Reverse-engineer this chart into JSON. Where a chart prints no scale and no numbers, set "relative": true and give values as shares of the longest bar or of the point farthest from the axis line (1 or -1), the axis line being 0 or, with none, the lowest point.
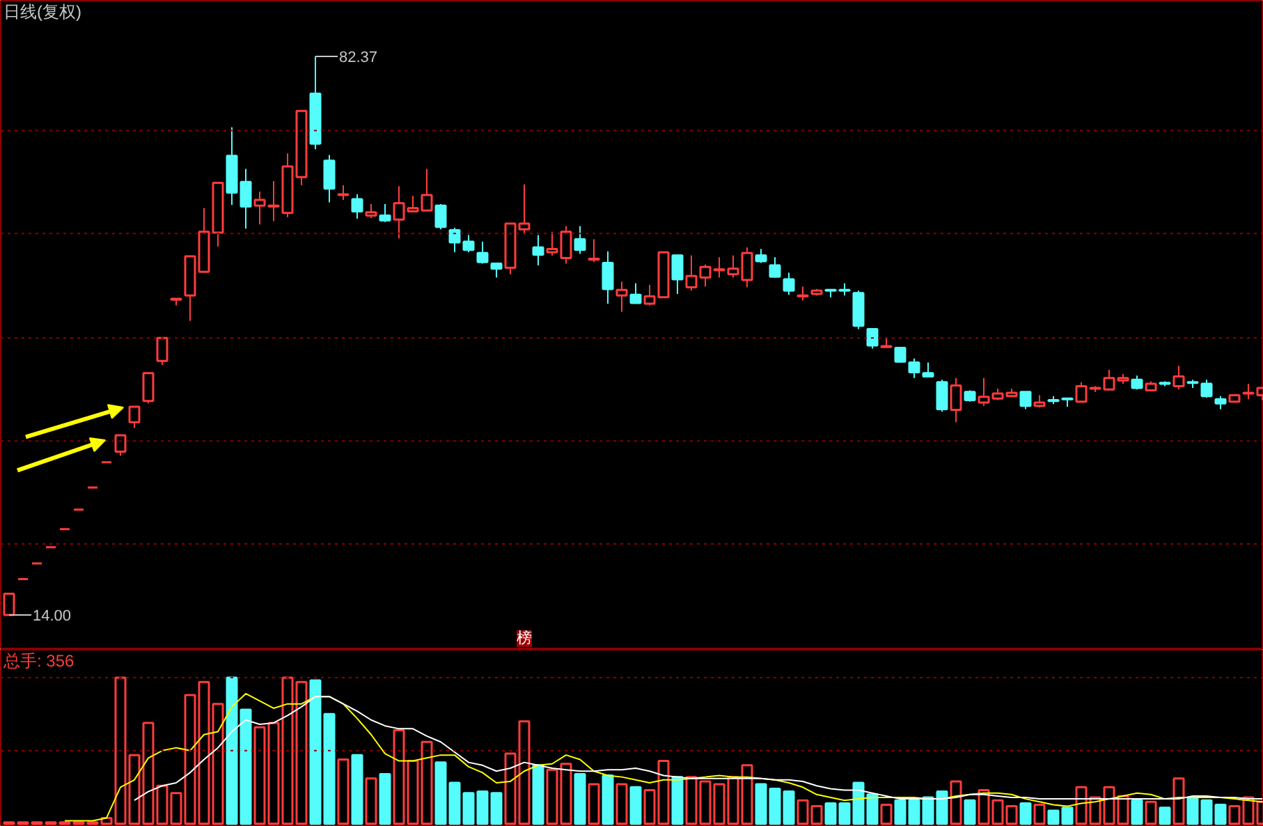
{
  "chart_data": [
    {
      "type": "candlestick",
      "title": "日线(复权)",
      "tick_labels": false,
      "ref_lines": [
        {
          "axis": "y",
          "value": 22.7,
          "color": "#8b0000",
          "line_style": "dotted"
        },
        {
          "axis": "y",
          "value": 35.3,
          "color": "#8b0000",
          "line_style": "dotted"
        },
        {
          "axis": "y",
          "value": 47.9,
          "color": "#8b0000",
          "line_style": "dotted"
        },
        {
          "axis": "y",
          "value": 60.7,
          "color": "#8b0000",
          "line_style": "dotted"
        },
        {
          "axis": "y",
          "value": 73.3,
          "color": "#8b0000",
          "line_style": "dotted"
        }
      ],
      "categories": [
        null,
        null,
        null,
        null,
        null,
        null,
        null,
        null,
        null,
        null,
        null,
        null,
        null,
        null,
        null,
        null,
        null,
        null,
        null,
        null,
        null,
        null,
        null,
        null,
        null,
        null,
        null,
        null,
        null,
        null,
        null,
        null,
        null,
        null,
        null,
        null,
        null,
        null,
        null,
        null,
        null,
        null,
        null,
        null,
        null,
        null,
        null,
        null,
        null,
        null,
        null,
        null,
        null,
        null,
        null,
        null,
        null,
        null,
        null,
        null,
        null,
        null,
        null,
        null,
        null,
        null,
        null,
        null,
        null,
        null,
        null,
        null,
        null,
        null,
        null,
        null,
        null,
        null,
        null,
        null,
        null,
        null,
        null,
        null,
        null,
        null,
        null,
        null,
        null,
        null,
        null
      ],
      "ohlc": [
        [
          14.0,
          16.6,
          14.0,
          16.6
        ],
        [
          18.4,
          18.4,
          18.4,
          18.4
        ],
        [
          20.3,
          20.3,
          20.3,
          20.3
        ],
        [
          22.3,
          22.3,
          22.3,
          22.3
        ],
        [
          24.5,
          24.5,
          24.5,
          24.5
        ],
        [
          26.9,
          26.9,
          26.9,
          26.9
        ],
        [
          29.6,
          29.6,
          29.6,
          29.6
        ],
        [
          32.7,
          32.7,
          32.7,
          32.7
        ],
        [
          34.0,
          36.0,
          33.5,
          36.0
        ],
        [
          37.6,
          39.5,
          36.9,
          39.5
        ],
        [
          40.2,
          43.6,
          39.9,
          43.6
        ],
        [
          45.1,
          47.9,
          44.6,
          47.9
        ],
        [
          52.6,
          52.7,
          51.9,
          52.7
        ],
        [
          53.1,
          57.9,
          50.0,
          57.9
        ],
        [
          56.0,
          63.8,
          56.0,
          60.9
        ],
        [
          60.8,
          66.9,
          59.1,
          66.9
        ],
        [
          70.2,
          73.7,
          64.2,
          65.7
        ],
        [
          67.0,
          68.6,
          61.3,
          64.0
        ],
        [
          64.1,
          65.8,
          61.8,
          64.8
        ],
        [
          64.0,
          67.1,
          62.2,
          64.1
        ],
        [
          63.2,
          70.5,
          62.7,
          68.9
        ],
        [
          67.6,
          75.7,
          66.6,
          75.7
        ],
        [
          77.8,
          82.37,
          71.0,
          71.7
        ],
        [
          69.6,
          70.3,
          64.5,
          66.2
        ],
        [
          65.4,
          66.6,
          64.8,
          65.5
        ],
        [
          64.9,
          65.5,
          62.5,
          63.4
        ],
        [
          62.9,
          64.3,
          62.6,
          63.3
        ],
        [
          62.9,
          64.3,
          62.1,
          62.3
        ],
        [
          62.4,
          66.5,
          60.1,
          64.4
        ],
        [
          63.4,
          65.3,
          63.4,
          63.8
        ],
        [
          63.5,
          68.6,
          63.5,
          65.4
        ],
        [
          64.1,
          64.3,
          61.2,
          61.5
        ],
        [
          61.1,
          61.4,
          58.4,
          59.6
        ],
        [
          59.7,
          60.5,
          58.4,
          58.7
        ],
        [
          58.3,
          59.7,
          57.0,
          57.2
        ],
        [
          57.0,
          57.0,
          55.3,
          56.4
        ],
        [
          56.5,
          61.9,
          55.7,
          61.9
        ],
        [
          61.2,
          66.7,
          60.6,
          61.9
        ],
        [
          59.0,
          60.5,
          56.8,
          58.1
        ],
        [
          58.4,
          60.9,
          58.0,
          58.8
        ],
        [
          57.7,
          61.6,
          57.0,
          60.9
        ],
        [
          60.0,
          61.6,
          58.2,
          58.7
        ],
        [
          57.5,
          60.0,
          57.2,
          57.6
        ],
        [
          57.1,
          58.5,
          52.1,
          53.9
        ],
        [
          53.1,
          54.8,
          51.1,
          53.8
        ],
        [
          53.2,
          54.6,
          52.1,
          52.2
        ],
        [
          52.1,
          54.4,
          51.9,
          53.0
        ],
        [
          52.9,
          58.4,
          52.9,
          58.4
        ],
        [
          58.0,
          58.0,
          53.3,
          55.1
        ],
        [
          54.1,
          58.0,
          53.7,
          55.5
        ],
        [
          55.3,
          56.9,
          54.2,
          56.6
        ],
        [
          56.2,
          57.8,
          55.3,
          56.3
        ],
        [
          55.7,
          58.0,
          55.3,
          56.4
        ],
        [
          55.0,
          59.0,
          54.1,
          58.3
        ],
        [
          58.0,
          58.8,
          57.1,
          57.3
        ],
        [
          56.8,
          57.8,
          55.3,
          55.4
        ],
        [
          55.1,
          55.9,
          53.2,
          53.7
        ],
        [
          53.0,
          54.2,
          52.5,
          53.1
        ],
        [
          53.3,
          53.9,
          53.1,
          53.7
        ],
        [
          53.8,
          53.8,
          52.9,
          53.7
        ],
        [
          53.8,
          54.6,
          53.1,
          53.7
        ],
        [
          53.4,
          53.7,
          49.0,
          49.4
        ],
        [
          49.0,
          49.0,
          46.6,
          47.0
        ],
        [
          46.8,
          47.9,
          46.8,
          46.9
        ],
        [
          46.7,
          46.7,
          44.9,
          45.0
        ],
        [
          44.9,
          45.4,
          43.0,
          43.7
        ],
        [
          43.6,
          44.9,
          43.2,
          43.2
        ],
        [
          42.5,
          42.8,
          38.9,
          39.2
        ],
        [
          39.1,
          43.0,
          37.6,
          42.1
        ],
        [
          41.3,
          41.5,
          40.1,
          40.3
        ],
        [
          40.0,
          43.0,
          39.6,
          40.7
        ],
        [
          40.5,
          41.7,
          40.3,
          41.1
        ],
        [
          40.8,
          41.7,
          40.8,
          41.2
        ],
        [
          41.3,
          41.3,
          39.2,
          39.6
        ],
        [
          39.6,
          40.9,
          39.4,
          40.0
        ],
        [
          40.3,
          40.8,
          39.8,
          40.2
        ],
        [
          40.5,
          40.5,
          39.5,
          40.4
        ],
        [
          40.1,
          42.5,
          40.1,
          42.0
        ],
        [
          41.7,
          42.0,
          41.3,
          41.8
        ],
        [
          41.6,
          44.0,
          41.5,
          43.0
        ],
        [
          42.7,
          43.5,
          42.3,
          43.0
        ],
        [
          42.8,
          43.3,
          41.6,
          41.8
        ],
        [
          41.5,
          42.6,
          41.5,
          42.3
        ],
        [
          42.4,
          42.6,
          42.0,
          42.3
        ],
        [
          42.0,
          44.5,
          41.6,
          43.2
        ],
        [
          42.5,
          42.8,
          41.8,
          42.4
        ],
        [
          42.3,
          42.8,
          40.6,
          40.8
        ],
        [
          40.4,
          40.8,
          39.2,
          39.9
        ],
        [
          40.1,
          40.9,
          40.1,
          40.9
        ],
        [
          41.1,
          42.3,
          40.4,
          41.2
        ],
        [
          40.9,
          41.8,
          40.3,
          41.8
        ]
      ],
      "colors": [
        "#ff3c3c",
        "#ff3c3c",
        "#ff3c3c",
        "#ff3c3c",
        "#ff3c3c",
        "#ff3c3c",
        "#ff3c3c",
        "#ff3c3c",
        "#ff3c3c",
        "#ff3c3c",
        "#ff3c3c",
        "#ff3c3c",
        "#ff3c3c",
        "#ff3c3c",
        "#ff3c3c",
        "#ff3c3c",
        "#54fcfc",
        "#54fcfc",
        "#ff3c3c",
        "#ff3c3c",
        "#ff3c3c",
        "#ff3c3c",
        "#54fcfc",
        "#54fcfc",
        "#ff3c3c",
        "#54fcfc",
        "#ff3c3c",
        "#54fcfc",
        "#ff3c3c",
        "#ff3c3c",
        "#ff3c3c",
        "#54fcfc",
        "#54fcfc",
        "#54fcfc",
        "#54fcfc",
        "#54fcfc",
        "#ff3c3c",
        "#ff3c3c",
        "#54fcfc",
        "#ff3c3c",
        "#ff3c3c",
        "#54fcfc",
        "#ff3c3c",
        "#54fcfc",
        "#ff3c3c",
        "#54fcfc",
        "#ff3c3c",
        "#ff3c3c",
        "#54fcfc",
        "#ff3c3c",
        "#ff3c3c",
        "#ff3c3c",
        "#ff3c3c",
        "#ff3c3c",
        "#54fcfc",
        "#54fcfc",
        "#54fcfc",
        "#ff3c3c",
        "#ff3c3c",
        "#54fcfc",
        "#54fcfc",
        "#54fcfc",
        "#54fcfc",
        "#ff3c3c",
        "#54fcfc",
        "#54fcfc",
        "#54fcfc",
        "#54fcfc",
        "#ff3c3c",
        "#54fcfc",
        "#ff3c3c",
        "#ff3c3c",
        "#ff3c3c",
        "#54fcfc",
        "#ff3c3c",
        "#54fcfc",
        "#54fcfc",
        "#ff3c3c",
        "#ff3c3c",
        "#ff3c3c",
        "#ff3c3c",
        "#54fcfc",
        "#ff3c3c",
        "#54fcfc",
        "#ff3c3c",
        "#54fcfc",
        "#54fcfc",
        "#54fcfc",
        "#ff3c3c",
        "#ff3c3c",
        "#ff3c3c"
      ],
      "annotations": [
        "82.37",
        "14.00",
        "榜"
      ]
    },
    {
      "type": "bar",
      "title": "总手: 356",
      "relative": true,
      "tick_labels": false,
      "ref_lines": [
        {
          "axis": "y",
          "value": 0.5,
          "color": "#8b0000",
          "line_style": "dotted"
        },
        {
          "axis": "y",
          "value": 1.0,
          "color": "#8b0000",
          "line_style": "dotted"
        }
      ],
      "categories": [
        null,
        null,
        null,
        null,
        null,
        null,
        null,
        null,
        null,
        null,
        null,
        null,
        null,
        null,
        null,
        null,
        null,
        null,
        null,
        null,
        null,
        null,
        null,
        null,
        null,
        null,
        null,
        null,
        null,
        null,
        null,
        null,
        null,
        null,
        null,
        null,
        null,
        null,
        null,
        null,
        null,
        null,
        null,
        null,
        null,
        null,
        null,
        null,
        null,
        null,
        null,
        null,
        null,
        null,
        null,
        null,
        null,
        null,
        null,
        null,
        null,
        null,
        null,
        null,
        null,
        null,
        null,
        null,
        null,
        null,
        null,
        null,
        null,
        null,
        null,
        null,
        null,
        null,
        null,
        null,
        null,
        null,
        null,
        null,
        null,
        null,
        null,
        null,
        null,
        null,
        null
      ],
      "series": [
        {
          "type": "bar",
          "values": [
            0.01,
            0.01,
            0.01,
            0.01,
            0.01,
            0.01,
            0.01,
            0.04,
            1.0,
            0.47,
            0.69,
            0.26,
            0.21,
            0.88,
            0.97,
            0.82,
            1.0,
            0.78,
            0.66,
            0.69,
            1.0,
            0.97,
            0.98,
            0.75,
            0.44,
            0.47,
            0.31,
            0.34,
            0.64,
            0.43,
            0.56,
            0.42,
            0.28,
            0.21,
            0.22,
            0.21,
            0.48,
            0.7,
            0.4,
            0.37,
            0.41,
            0.34,
            0.27,
            0.33,
            0.27,
            0.25,
            0.23,
            0.43,
            0.32,
            0.32,
            0.29,
            0.27,
            0.32,
            0.4,
            0.27,
            0.24,
            0.22,
            0.16,
            0.12,
            0.14,
            0.14,
            0.28,
            0.2,
            0.13,
            0.16,
            0.16,
            0.18,
            0.22,
            0.29,
            0.16,
            0.23,
            0.16,
            0.12,
            0.14,
            0.13,
            0.09,
            0.11,
            0.25,
            0.18,
            0.25,
            0.19,
            0.16,
            0.15,
            0.11,
            0.31,
            0.18,
            0.16,
            0.13,
            0.12,
            0.18,
            0.15
          ],
          "colors": [
            "#ff3c3c",
            "#ff3c3c",
            "#ff3c3c",
            "#ff3c3c",
            "#ff3c3c",
            "#ff3c3c",
            "#ff3c3c",
            "#ff3c3c",
            "#ff3c3c",
            "#ff3c3c",
            "#ff3c3c",
            "#ff3c3c",
            "#ff3c3c",
            "#ff3c3c",
            "#ff3c3c",
            "#ff3c3c",
            "#54fcfc",
            "#54fcfc",
            "#ff3c3c",
            "#ff3c3c",
            "#ff3c3c",
            "#ff3c3c",
            "#54fcfc",
            "#54fcfc",
            "#ff3c3c",
            "#54fcfc",
            "#ff3c3c",
            "#54fcfc",
            "#ff3c3c",
            "#ff3c3c",
            "#ff3c3c",
            "#54fcfc",
            "#54fcfc",
            "#54fcfc",
            "#54fcfc",
            "#54fcfc",
            "#ff3c3c",
            "#ff3c3c",
            "#54fcfc",
            "#ff3c3c",
            "#ff3c3c",
            "#54fcfc",
            "#ff3c3c",
            "#54fcfc",
            "#ff3c3c",
            "#54fcfc",
            "#ff3c3c",
            "#ff3c3c",
            "#54fcfc",
            "#ff3c3c",
            "#ff3c3c",
            "#ff3c3c",
            "#ff3c3c",
            "#ff3c3c",
            "#54fcfc",
            "#54fcfc",
            "#54fcfc",
            "#ff3c3c",
            "#ff3c3c",
            "#54fcfc",
            "#54fcfc",
            "#54fcfc",
            "#54fcfc",
            "#ff3c3c",
            "#54fcfc",
            "#54fcfc",
            "#54fcfc",
            "#54fcfc",
            "#ff3c3c",
            "#54fcfc",
            "#ff3c3c",
            "#ff3c3c",
            "#ff3c3c",
            "#54fcfc",
            "#ff3c3c",
            "#54fcfc",
            "#54fcfc",
            "#ff3c3c",
            "#ff3c3c",
            "#ff3c3c",
            "#ff3c3c",
            "#54fcfc",
            "#ff3c3c",
            "#54fcfc",
            "#ff3c3c",
            "#54fcfc",
            "#54fcfc",
            "#54fcfc",
            "#ff3c3c",
            "#ff3c3c",
            "#ff3c3c"
          ]
        },
        {
          "type": "line",
          "color": "#ffff00",
          "values": [
            null,
            null,
            null,
            null,
            0.02,
            0.02,
            0.02,
            0.04,
            0.25,
            0.3,
            0.45,
            0.5,
            0.52,
            0.5,
            0.61,
            0.63,
            0.8,
            0.89,
            0.84,
            0.79,
            0.82,
            0.82,
            0.87,
            0.87,
            0.82,
            0.72,
            0.61,
            0.48,
            0.43,
            0.43,
            0.45,
            0.47,
            0.47,
            0.39,
            0.35,
            0.28,
            0.29,
            0.36,
            0.4,
            0.41,
            0.47,
            0.44,
            0.36,
            0.33,
            0.32,
            0.3,
            0.28,
            0.3,
            0.3,
            0.31,
            0.32,
            0.33,
            0.32,
            0.32,
            0.31,
            0.3,
            0.28,
            0.25,
            0.2,
            0.18,
            0.16,
            0.17,
            0.18,
            0.18,
            0.18,
            0.18,
            0.17,
            0.17,
            0.19,
            0.2,
            0.21,
            0.21,
            0.2,
            0.17,
            0.15,
            0.13,
            0.12,
            0.14,
            0.15,
            0.17,
            0.19,
            0.21,
            0.2,
            0.17,
            0.18,
            0.18,
            0.18,
            0.18,
            0.17,
            0.16,
            0.15
          ]
        },
        {
          "type": "line",
          "color": "#ffffff",
          "values": [
            null,
            null,
            null,
            null,
            null,
            null,
            null,
            null,
            null,
            0.16,
            0.22,
            0.26,
            0.28,
            0.35,
            0.44,
            0.52,
            0.63,
            0.71,
            0.68,
            0.69,
            0.74,
            0.8,
            0.87,
            0.87,
            0.82,
            0.77,
            0.71,
            0.67,
            0.65,
            0.65,
            0.6,
            0.56,
            0.49,
            0.42,
            0.4,
            0.36,
            0.38,
            0.42,
            0.4,
            0.38,
            0.37,
            0.36,
            0.36,
            0.37,
            0.37,
            0.38,
            0.36,
            0.33,
            0.32,
            0.31,
            0.31,
            0.31,
            0.31,
            0.31,
            0.31,
            0.3,
            0.3,
            0.29,
            0.26,
            0.24,
            0.23,
            0.23,
            0.21,
            0.19,
            0.17,
            0.17,
            0.17,
            0.17,
            0.18,
            0.2,
            0.2,
            0.19,
            0.18,
            0.18,
            0.17,
            0.17,
            0.17,
            0.17,
            0.17,
            0.17,
            0.17,
            0.17,
            0.17,
            0.17,
            0.17,
            0.19,
            0.19,
            0.18,
            0.18,
            0.17,
            0.17
          ]
        }
      ]
    }
  ]
}
